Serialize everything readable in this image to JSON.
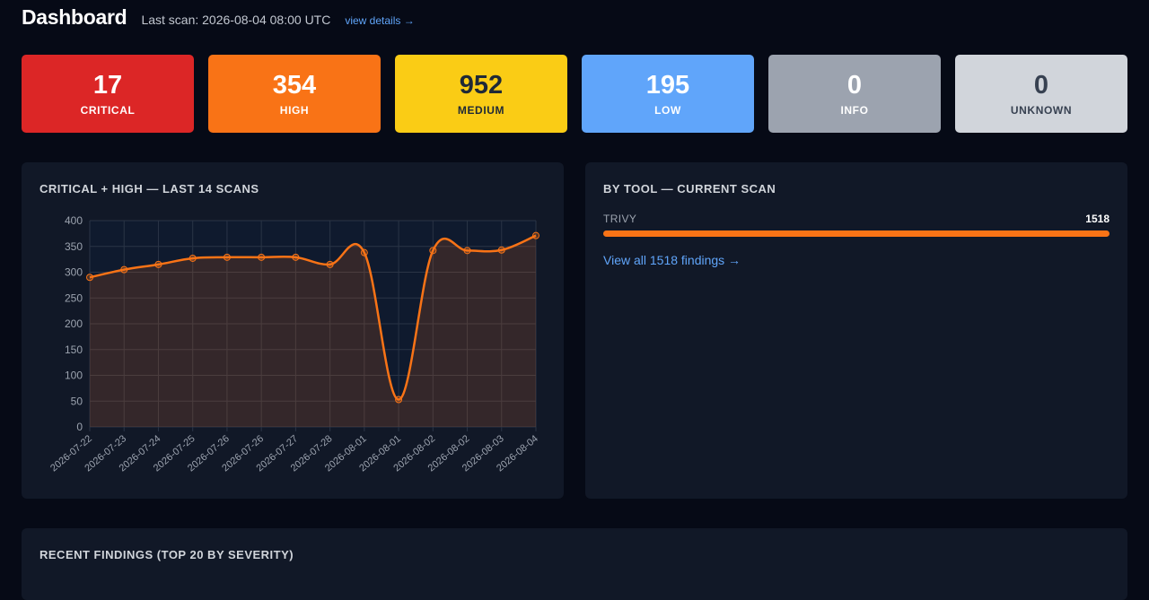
{
  "header": {
    "title": "Dashboard",
    "last_scan": "Last scan: 2026-08-04 08:00 UTC",
    "details_link": "view details →"
  },
  "severity_cards": [
    {
      "count": "17",
      "label": "CRITICAL",
      "bg": "#dc2626",
      "fg": "#ffffff"
    },
    {
      "count": "354",
      "label": "HIGH",
      "bg": "#f97316",
      "fg": "#ffffff"
    },
    {
      "count": "952",
      "label": "MEDIUM",
      "bg": "#facc15",
      "fg": "#1f2937"
    },
    {
      "count": "195",
      "label": "LOW",
      "bg": "#60a5fa",
      "fg": "#ffffff"
    },
    {
      "count": "0",
      "label": "INFO",
      "bg": "#9ca3af",
      "fg": "#ffffff"
    },
    {
      "count": "0",
      "label": "UNKNOWN",
      "bg": "#d1d5db",
      "fg": "#374151"
    }
  ],
  "trend_panel": {
    "title": "CRITICAL + HIGH — LAST 14 SCANS"
  },
  "chart_data": {
    "type": "line",
    "title": "CRITICAL + HIGH — LAST 14 SCANS",
    "categories": [
      "2026-07-22",
      "2026-07-23",
      "2026-07-24",
      "2026-07-25",
      "2026-07-26",
      "2026-07-26",
      "2026-07-27",
      "2026-07-28",
      "2026-08-01",
      "2026-08-01",
      "2026-08-02",
      "2026-08-02",
      "2026-08-03",
      "2026-08-04"
    ],
    "series": [
      {
        "values": [
          290,
          305,
          315,
          327,
          329,
          329,
          329,
          315,
          338,
          53,
          342,
          342,
          343,
          371
        ],
        "color": "#f97316"
      }
    ],
    "ylim": [
      0,
      400
    ],
    "yticks": [
      0,
      50,
      100,
      150,
      200,
      250,
      300,
      350,
      400
    ],
    "grid": true,
    "legend": "none"
  },
  "tool_panel": {
    "title": "BY TOOL — CURRENT SCAN",
    "tools": [
      {
        "name": "TRIVY",
        "count": "1518",
        "share": 1.0,
        "color": "#f97316"
      }
    ],
    "view_all": "View all 1518 findings →"
  },
  "recent_panel": {
    "title": "RECENT FINDINGS (TOP 20 BY SEVERITY)"
  }
}
